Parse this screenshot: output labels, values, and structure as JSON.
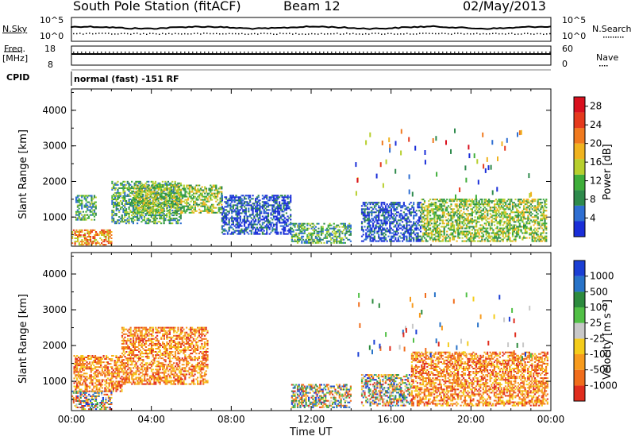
{
  "header": {
    "station": "South Pole Station (fitACF)",
    "beam": "Beam 12",
    "date": "02/May/2013"
  },
  "summary": {
    "nsky_label": "N.Sky",
    "freq_label_line1": "Freq.",
    "freq_label_line2": "[MHz]",
    "cpid_label": "CPID",
    "nsearch_label": "N.Search",
    "nave_label": "Nave",
    "nsky_ticks": [
      "10^5",
      "10^0"
    ],
    "nsearch_ticks": [
      "10^5",
      "10^0"
    ],
    "freq_ticks": [
      "18",
      "8"
    ],
    "nave_ticks": [
      "60",
      "0"
    ],
    "cpid_text": "normal (fast) -151 RF"
  },
  "colors": {
    "power": [
      "#1a2ed8",
      "#2f6fd2",
      "#2e8a4c",
      "#3fae3a",
      "#b7cf2d",
      "#f0b31f",
      "#f07a1f",
      "#e53a1d",
      "#d9101e"
    ],
    "velocity": [
      "#1b3fd4",
      "#2873c8",
      "#2d8b3e",
      "#52c046",
      "#c8c8c8",
      "#f4cc1b",
      "#f79b1e",
      "#f06d1c",
      "#e02d1e"
    ]
  },
  "chart_data": [
    {
      "type": "heatmap",
      "title": "Power",
      "ylabel": "Slant Range [km]",
      "xlabel": "Time UT",
      "x_ticks": [
        "00:00",
        "04:00",
        "08:00",
        "12:00",
        "16:00",
        "20:00",
        "00:00"
      ],
      "y_ticks": [
        1000,
        2000,
        3000,
        4000
      ],
      "ylim": [
        180,
        4600
      ],
      "xlim_hours": [
        0,
        24
      ],
      "colorbar": {
        "label": "Power [dB]",
        "ticks": [
          4,
          8,
          12,
          16,
          20,
          24,
          28
        ],
        "range": [
          0,
          30
        ]
      },
      "regions": [
        {
          "t0": 0.0,
          "t1": 2.0,
          "r0": 200,
          "r1": 650,
          "level": "high"
        },
        {
          "t0": 0.2,
          "t1": 1.2,
          "r0": 900,
          "r1": 1600,
          "level": "mid"
        },
        {
          "t0": 2.0,
          "t1": 5.5,
          "r0": 800,
          "r1": 2000,
          "level": "mid"
        },
        {
          "t0": 3.0,
          "t1": 7.5,
          "r0": 1100,
          "r1": 1900,
          "level": "mid-high"
        },
        {
          "t0": 7.5,
          "t1": 11.0,
          "r0": 500,
          "r1": 1600,
          "level": "low"
        },
        {
          "t0": 11.0,
          "t1": 14.0,
          "r0": 250,
          "r1": 800,
          "level": "mid"
        },
        {
          "t0": 14.5,
          "t1": 17.5,
          "r0": 300,
          "r1": 1400,
          "level": "low"
        },
        {
          "t0": 17.5,
          "t1": 23.8,
          "r0": 300,
          "r1": 1500,
          "level": "mid-high"
        }
      ]
    },
    {
      "type": "heatmap",
      "title": "Velocity",
      "ylabel": "Slant Range [km]",
      "xlabel": "Time UT",
      "x_ticks": [
        "00:00",
        "04:00",
        "08:00",
        "12:00",
        "16:00",
        "20:00",
        "00:00"
      ],
      "y_ticks": [
        1000,
        2000,
        3000,
        4000
      ],
      "ylim": [
        180,
        4600
      ],
      "xlim_hours": [
        0,
        24
      ],
      "colorbar": {
        "label": "Velocity [m s⁻¹]",
        "ticks": [
          "1000",
          "500",
          "100",
          "25",
          "-25",
          "-100",
          "-500",
          "-1000"
        ]
      },
      "regions": [
        {
          "t0": 0.0,
          "t1": 2.0,
          "r0": 200,
          "r1": 700,
          "level": "mixed"
        },
        {
          "t0": 0.1,
          "t1": 2.5,
          "r0": 700,
          "r1": 1700,
          "level": "neg"
        },
        {
          "t0": 2.5,
          "t1": 6.8,
          "r0": 900,
          "r1": 2500,
          "level": "neg"
        },
        {
          "t0": 11.0,
          "t1": 14.0,
          "r0": 250,
          "r1": 900,
          "level": "mixed"
        },
        {
          "t0": 14.5,
          "t1": 17.0,
          "r0": 300,
          "r1": 1200,
          "level": "mixed"
        },
        {
          "t0": 17.0,
          "t1": 23.8,
          "r0": 300,
          "r1": 1800,
          "level": "neg"
        }
      ]
    }
  ]
}
